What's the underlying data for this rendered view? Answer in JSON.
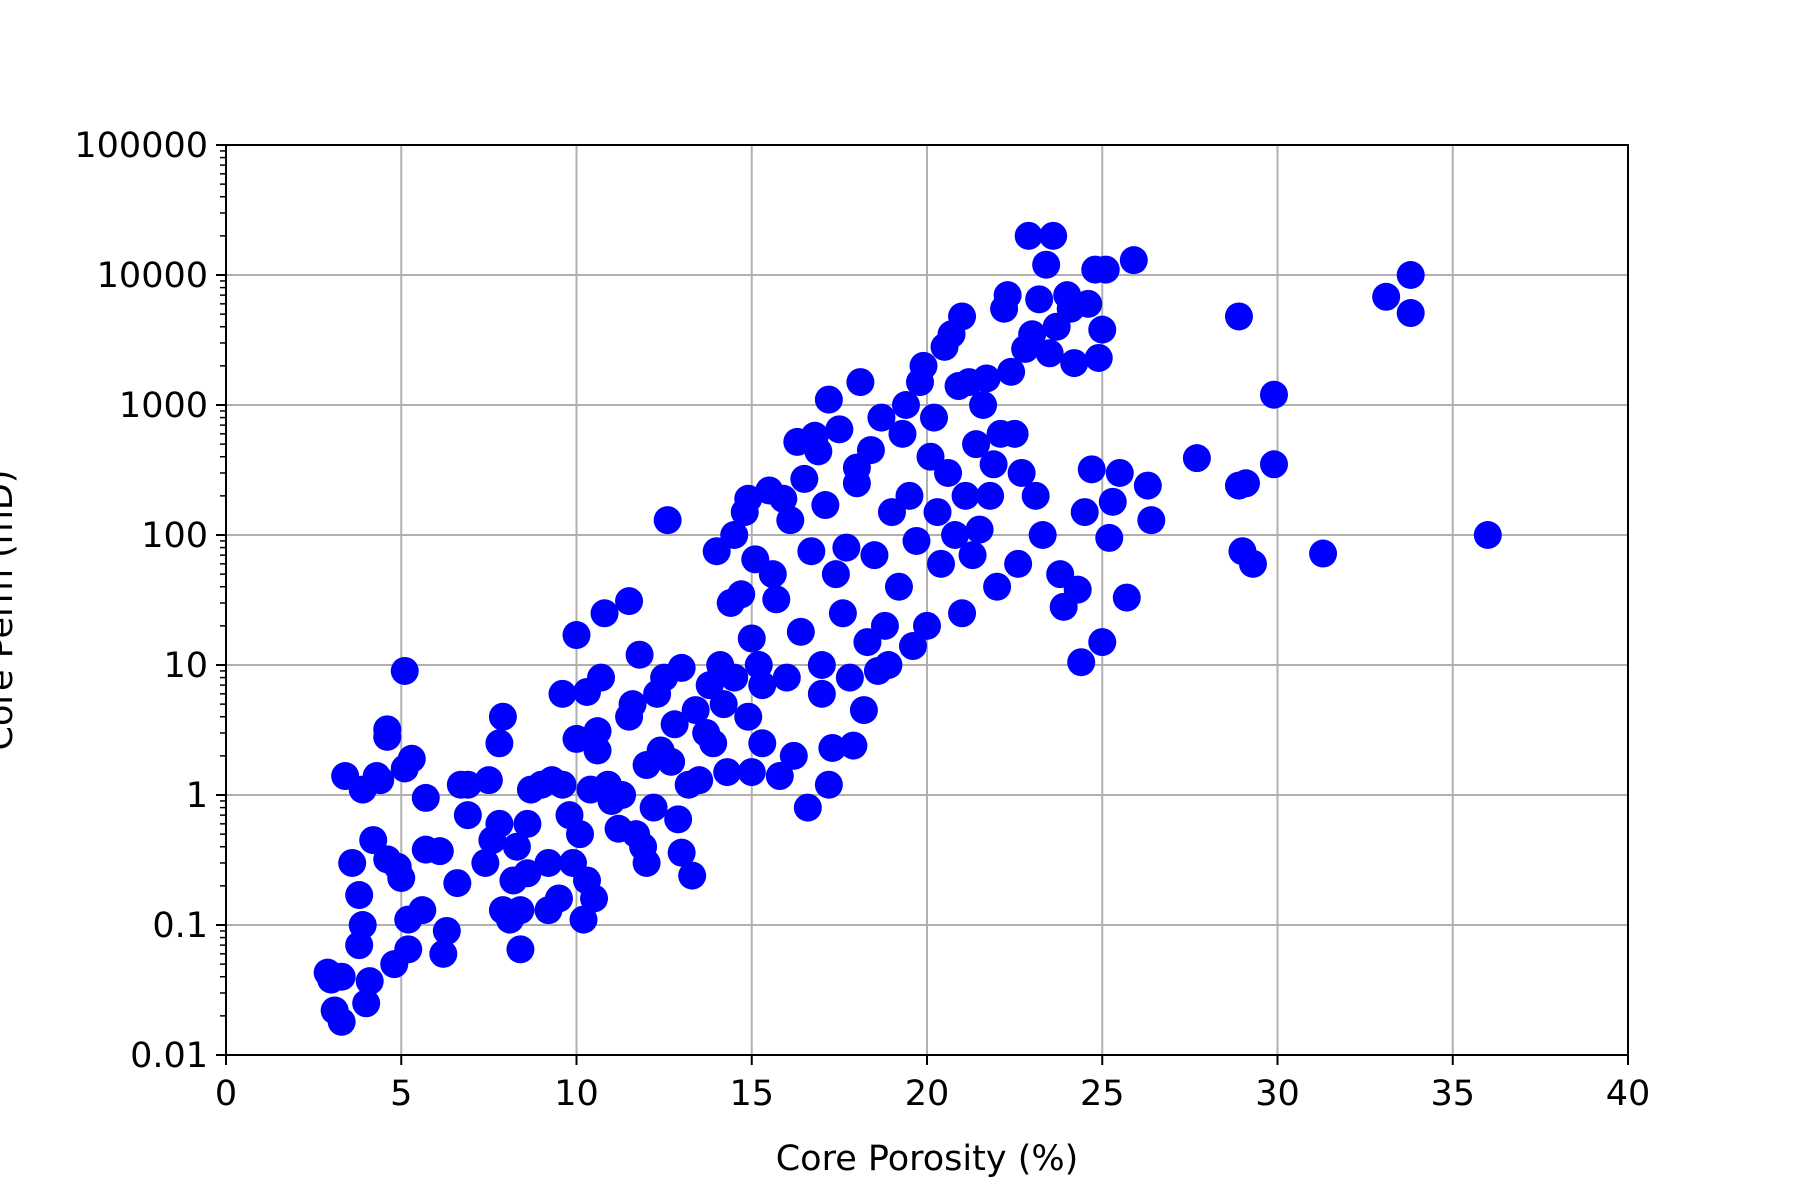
{
  "chart_data": {
    "type": "scatter",
    "title": "",
    "xlabel": "Core Porosity (%)",
    "ylabel": "Core Perm (mD)",
    "xlim": [
      0,
      40
    ],
    "ylim": [
      0.01,
      100000
    ],
    "yscale": "log",
    "grid": true,
    "marker_color": "#0000ff",
    "x_ticks": [
      0,
      5,
      10,
      15,
      20,
      25,
      30,
      35,
      40
    ],
    "y_ticks": [
      0.01,
      0.1,
      1,
      10,
      100,
      1000,
      10000,
      100000
    ],
    "x_tick_labels": [
      "0",
      "5",
      "10",
      "15",
      "20",
      "25",
      "30",
      "35",
      "40"
    ],
    "y_tick_labels": [
      "0.01",
      "0.1",
      "1",
      "10",
      "100",
      "1000",
      "10000",
      "100000"
    ],
    "series": [
      {
        "points": [
          [
            2.9,
            0.043
          ],
          [
            3.0,
            0.038
          ],
          [
            3.3,
            0.04
          ],
          [
            3.1,
            0.022
          ],
          [
            3.3,
            0.018
          ],
          [
            3.4,
            1.4
          ],
          [
            3.6,
            0.3
          ],
          [
            3.8,
            0.07
          ],
          [
            3.9,
            1.1
          ],
          [
            3.8,
            0.17
          ],
          [
            3.9,
            0.1
          ],
          [
            4.0,
            0.025
          ],
          [
            4.1,
            0.037
          ],
          [
            4.2,
            0.45
          ],
          [
            4.3,
            1.4
          ],
          [
            4.4,
            1.3
          ],
          [
            4.6,
            0.32
          ],
          [
            4.6,
            3.2
          ],
          [
            4.6,
            2.8
          ],
          [
            4.8,
            0.05
          ],
          [
            4.9,
            0.28
          ],
          [
            5.0,
            0.23
          ],
          [
            5.1,
            9.0
          ],
          [
            5.2,
            0.11
          ],
          [
            5.2,
            0.065
          ],
          [
            5.1,
            1.6
          ],
          [
            5.3,
            1.9
          ],
          [
            5.6,
            0.13
          ],
          [
            5.7,
            0.95
          ],
          [
            5.7,
            0.38
          ],
          [
            6.1,
            0.37
          ],
          [
            6.2,
            0.06
          ],
          [
            6.3,
            0.09
          ],
          [
            6.6,
            0.21
          ],
          [
            6.7,
            1.2
          ],
          [
            6.9,
            0.7
          ],
          [
            6.9,
            1.2
          ],
          [
            7.4,
            0.3
          ],
          [
            7.5,
            1.3
          ],
          [
            7.6,
            0.45
          ],
          [
            7.8,
            0.6
          ],
          [
            7.8,
            2.5
          ],
          [
            7.9,
            4.0
          ],
          [
            7.9,
            0.13
          ],
          [
            8.1,
            0.11
          ],
          [
            8.2,
            0.22
          ],
          [
            8.3,
            0.4
          ],
          [
            8.4,
            0.13
          ],
          [
            8.4,
            0.065
          ],
          [
            8.6,
            0.6
          ],
          [
            8.6,
            0.25
          ],
          [
            8.7,
            1.1
          ],
          [
            9.0,
            1.2
          ],
          [
            9.2,
            0.3
          ],
          [
            9.2,
            0.13
          ],
          [
            9.3,
            1.3
          ],
          [
            9.5,
            0.16
          ],
          [
            9.6,
            1.2
          ],
          [
            9.6,
            6.0
          ],
          [
            9.8,
            0.7
          ],
          [
            9.9,
            0.3
          ],
          [
            10.0,
            17.0
          ],
          [
            10.0,
            2.7
          ],
          [
            10.1,
            0.5
          ],
          [
            10.2,
            0.11
          ],
          [
            10.3,
            6.2
          ],
          [
            10.3,
            0.22
          ],
          [
            10.4,
            1.1
          ],
          [
            10.5,
            0.16
          ],
          [
            10.6,
            2.2
          ],
          [
            10.6,
            3.1
          ],
          [
            10.7,
            8.0
          ],
          [
            10.8,
            25.0
          ],
          [
            10.9,
            1.2
          ],
          [
            11.0,
            0.9
          ],
          [
            11.2,
            0.55
          ],
          [
            11.3,
            1.0
          ],
          [
            11.5,
            31.0
          ],
          [
            11.5,
            4.0
          ],
          [
            11.6,
            5.0
          ],
          [
            11.7,
            0.5
          ],
          [
            11.8,
            12.0
          ],
          [
            11.9,
            0.4
          ],
          [
            12.0,
            0.3
          ],
          [
            12.0,
            1.7
          ],
          [
            12.2,
            0.8
          ],
          [
            12.3,
            6.0
          ],
          [
            12.4,
            2.2
          ],
          [
            12.5,
            8.0
          ],
          [
            12.6,
            130.0
          ],
          [
            12.7,
            1.8
          ],
          [
            12.8,
            3.5
          ],
          [
            12.9,
            0.65
          ],
          [
            13.0,
            9.5
          ],
          [
            13.0,
            0.36
          ],
          [
            13.2,
            1.2
          ],
          [
            13.3,
            0.24
          ],
          [
            13.4,
            4.5
          ],
          [
            13.5,
            1.3
          ],
          [
            13.7,
            3.0
          ],
          [
            13.8,
            7.0
          ],
          [
            13.9,
            2.5
          ],
          [
            14.0,
            75.0
          ],
          [
            14.1,
            10.0
          ],
          [
            14.2,
            5.0
          ],
          [
            14.3,
            1.5
          ],
          [
            14.4,
            30.0
          ],
          [
            14.5,
            8.0
          ],
          [
            14.5,
            100.0
          ],
          [
            14.7,
            35.0
          ],
          [
            14.8,
            150.0
          ],
          [
            14.9,
            190.0
          ],
          [
            14.9,
            4.0
          ],
          [
            15.0,
            16.0
          ],
          [
            15.0,
            1.5
          ],
          [
            15.1,
            65.0
          ],
          [
            15.2,
            10.0
          ],
          [
            15.3,
            7.0
          ],
          [
            15.3,
            2.5
          ],
          [
            15.5,
            220.0
          ],
          [
            15.6,
            50.0
          ],
          [
            15.7,
            32.0
          ],
          [
            15.8,
            1.4
          ],
          [
            15.9,
            190.0
          ],
          [
            16.0,
            8.0
          ],
          [
            16.1,
            130.0
          ],
          [
            16.2,
            2.0
          ],
          [
            16.3,
            520.0
          ],
          [
            16.4,
            18.0
          ],
          [
            16.5,
            270.0
          ],
          [
            16.6,
            0.8
          ],
          [
            16.7,
            75.0
          ],
          [
            16.8,
            580.0
          ],
          [
            16.9,
            440.0
          ],
          [
            17.0,
            6.0
          ],
          [
            17.0,
            10.0
          ],
          [
            17.1,
            170.0
          ],
          [
            17.2,
            1100.0
          ],
          [
            17.2,
            1.2
          ],
          [
            17.3,
            2.3
          ],
          [
            17.4,
            50.0
          ],
          [
            17.5,
            650.0
          ],
          [
            17.6,
            25.0
          ],
          [
            17.7,
            80.0
          ],
          [
            17.8,
            8.0
          ],
          [
            17.9,
            2.4
          ],
          [
            18.0,
            250.0
          ],
          [
            18.0,
            330.0
          ],
          [
            18.1,
            1500.0
          ],
          [
            18.2,
            4.5
          ],
          [
            18.3,
            15.0
          ],
          [
            18.4,
            450.0
          ],
          [
            18.5,
            70.0
          ],
          [
            18.6,
            9.0
          ],
          [
            18.7,
            800.0
          ],
          [
            18.8,
            20.0
          ],
          [
            18.9,
            10.0
          ],
          [
            19.0,
            150.0
          ],
          [
            19.2,
            40.0
          ],
          [
            19.3,
            600.0
          ],
          [
            19.4,
            1000.0
          ],
          [
            19.5,
            200.0
          ],
          [
            19.6,
            14.0
          ],
          [
            19.7,
            90.0
          ],
          [
            19.8,
            1500.0
          ],
          [
            19.9,
            2000.0
          ],
          [
            20.0,
            20.0
          ],
          [
            20.1,
            400.0
          ],
          [
            20.2,
            800.0
          ],
          [
            20.3,
            150.0
          ],
          [
            20.4,
            60.0
          ],
          [
            20.5,
            2800.0
          ],
          [
            20.6,
            300.0
          ],
          [
            20.7,
            3500.0
          ],
          [
            20.8,
            100.0
          ],
          [
            20.9,
            1400.0
          ],
          [
            21.0,
            4800.0
          ],
          [
            21.0,
            25.0
          ],
          [
            21.1,
            200.0
          ],
          [
            21.2,
            1500.0
          ],
          [
            21.3,
            70.0
          ],
          [
            21.4,
            500.0
          ],
          [
            21.5,
            110.0
          ],
          [
            21.6,
            1000.0
          ],
          [
            21.7,
            1600.0
          ],
          [
            21.8,
            200.0
          ],
          [
            21.9,
            350.0
          ],
          [
            22.0,
            40.0
          ],
          [
            22.1,
            600.0
          ],
          [
            22.2,
            5500.0
          ],
          [
            22.3,
            7000.0
          ],
          [
            22.4,
            1800.0
          ],
          [
            22.5,
            600.0
          ],
          [
            22.6,
            60.0
          ],
          [
            22.7,
            300.0
          ],
          [
            22.8,
            2700.0
          ],
          [
            22.9,
            20000.0
          ],
          [
            23.0,
            3500.0
          ],
          [
            23.1,
            200.0
          ],
          [
            23.2,
            6500.0
          ],
          [
            23.3,
            100.0
          ],
          [
            23.4,
            12000.0
          ],
          [
            23.5,
            2500.0
          ],
          [
            23.6,
            20000.0
          ],
          [
            23.7,
            4000.0
          ],
          [
            23.8,
            50.0
          ],
          [
            23.9,
            28.0
          ],
          [
            24.0,
            7000.0
          ],
          [
            24.1,
            5500.0
          ],
          [
            24.2,
            2100.0
          ],
          [
            24.3,
            38.0
          ],
          [
            24.4,
            10.5
          ],
          [
            24.5,
            150.0
          ],
          [
            24.6,
            6000.0
          ],
          [
            24.7,
            320.0
          ],
          [
            24.8,
            11000.0
          ],
          [
            24.9,
            2300.0
          ],
          [
            25.0,
            15.0
          ],
          [
            25.0,
            3800.0
          ],
          [
            25.1,
            11000.0
          ],
          [
            25.2,
            95.0
          ],
          [
            25.3,
            180.0
          ],
          [
            25.5,
            300.0
          ],
          [
            25.7,
            33.0
          ],
          [
            25.9,
            13000.0
          ],
          [
            26.3,
            240.0
          ],
          [
            26.4,
            130.0
          ],
          [
            27.7,
            390.0
          ],
          [
            28.9,
            4800.0
          ],
          [
            28.9,
            240.0
          ],
          [
            29.1,
            250.0
          ],
          [
            29.0,
            75.0
          ],
          [
            29.3,
            60.0
          ],
          [
            29.9,
            1200.0
          ],
          [
            29.9,
            350.0
          ],
          [
            31.3,
            72.0
          ],
          [
            33.1,
            6800.0
          ],
          [
            33.8,
            10000.0
          ],
          [
            33.8,
            5100.0
          ],
          [
            36.0,
            100.0
          ]
        ]
      }
    ]
  }
}
